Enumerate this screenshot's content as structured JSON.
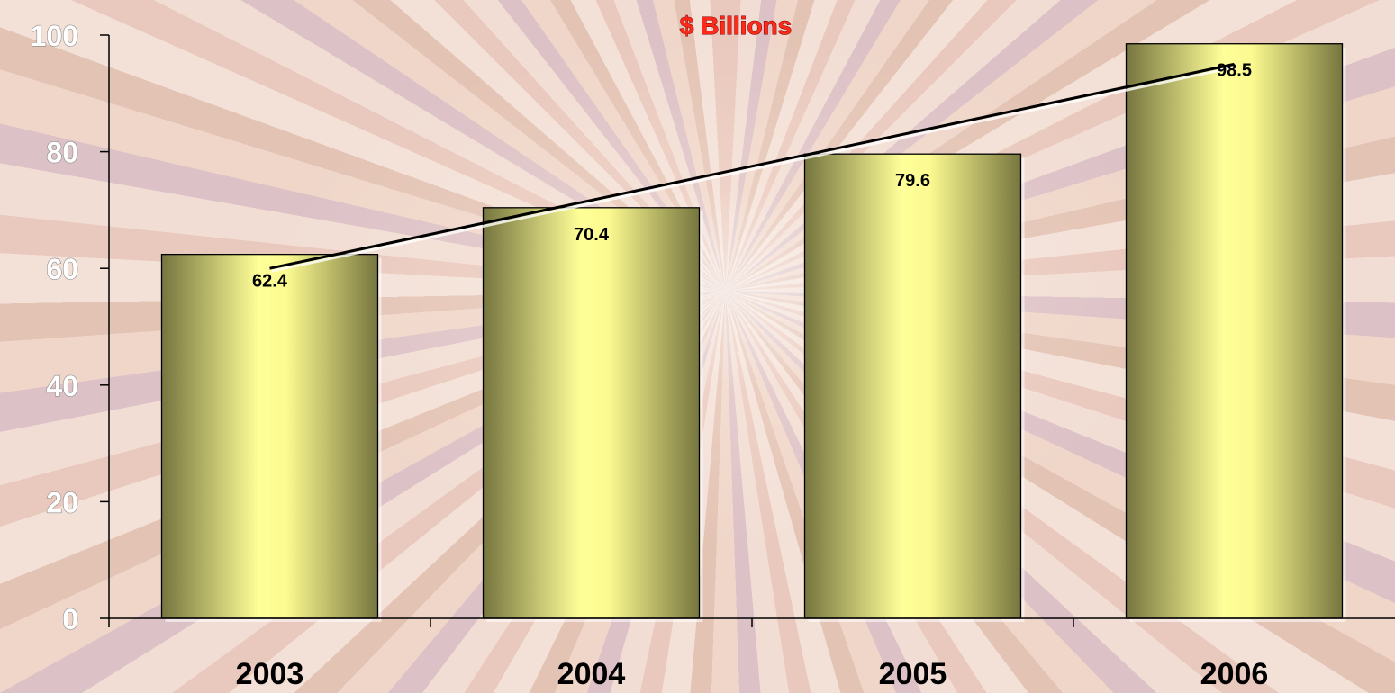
{
  "chart_data": {
    "type": "bar",
    "title": "$ Billions",
    "categories": [
      "2003",
      "2004",
      "2005",
      "2006"
    ],
    "values": [
      62.4,
      70.4,
      79.6,
      98.5
    ],
    "data_labels": [
      "62.4",
      "70.4",
      "79.6",
      "98.5"
    ],
    "yticks": [
      "0",
      "20",
      "40",
      "60",
      "80",
      "100"
    ],
    "ylim": [
      0,
      100
    ],
    "grid": false,
    "legend": "none",
    "trendline": {
      "type": "linear",
      "from": 60,
      "to": 95
    },
    "colors": {
      "title": "#ff2a1a",
      "bar_light": "#ffff99",
      "bar_dark": "#7a7a45",
      "trendline": "#000000"
    }
  }
}
